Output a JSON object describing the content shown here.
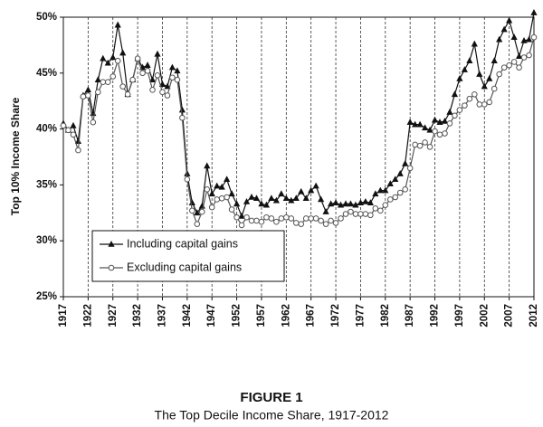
{
  "chart_data": {
    "type": "line",
    "title": "FIGURE 1",
    "subtitle": "The Top Decile Income Share, 1917-2012",
    "y_label": "Top 10% Income Share",
    "x": [
      1917,
      1918,
      1919,
      1920,
      1921,
      1922,
      1923,
      1924,
      1925,
      1926,
      1927,
      1928,
      1929,
      1930,
      1931,
      1932,
      1933,
      1934,
      1935,
      1936,
      1937,
      1938,
      1939,
      1940,
      1941,
      1942,
      1943,
      1944,
      1945,
      1946,
      1947,
      1948,
      1949,
      1950,
      1951,
      1952,
      1953,
      1954,
      1955,
      1956,
      1957,
      1958,
      1959,
      1960,
      1961,
      1962,
      1963,
      1964,
      1965,
      1966,
      1967,
      1968,
      1969,
      1970,
      1971,
      1972,
      1973,
      1974,
      1975,
      1976,
      1977,
      1978,
      1979,
      1980,
      1981,
      1982,
      1983,
      1984,
      1985,
      1986,
      1987,
      1988,
      1989,
      1990,
      1991,
      1992,
      1993,
      1994,
      1995,
      1996,
      1997,
      1998,
      1999,
      2000,
      2001,
      2002,
      2003,
      2004,
      2005,
      2006,
      2007,
      2008,
      2009,
      2010,
      2011,
      2012
    ],
    "series": [
      {
        "name": "Including capital gains",
        "color": "#111111",
        "marker": "triangle",
        "values": [
          40.5,
          39.9,
          40.3,
          38.9,
          43.0,
          43.5,
          41.4,
          44.4,
          46.3,
          45.9,
          46.4,
          49.3,
          46.8,
          43.1,
          44.4,
          46.3,
          45.5,
          45.7,
          44.4,
          46.7,
          44.0,
          43.8,
          45.5,
          45.2,
          41.7,
          36.0,
          33.4,
          32.5,
          33.1,
          36.7,
          34.2,
          34.9,
          34.8,
          35.5,
          34.2,
          33.3,
          32.2,
          33.5,
          33.9,
          33.8,
          33.3,
          33.2,
          33.8,
          33.6,
          34.2,
          33.8,
          33.6,
          33.8,
          34.4,
          33.8,
          34.5,
          34.9,
          33.7,
          32.6,
          33.3,
          33.4,
          33.2,
          33.3,
          33.3,
          33.2,
          33.4,
          33.5,
          33.4,
          34.2,
          34.5,
          34.5,
          35.1,
          35.5,
          36.0,
          36.9,
          40.6,
          40.4,
          40.4,
          40.1,
          39.9,
          40.8,
          40.6,
          40.7,
          41.5,
          43.1,
          44.5,
          45.3,
          46.1,
          47.6,
          44.9,
          43.8,
          44.5,
          46.1,
          48.0,
          48.9,
          49.7,
          48.2,
          46.5,
          47.9,
          48.0,
          50.4
        ]
      },
      {
        "name": "Excluding capital gains",
        "color": "#555555",
        "marker": "circle",
        "values": [
          40.3,
          39.9,
          39.5,
          38.1,
          42.9,
          43.0,
          40.6,
          43.3,
          44.2,
          44.2,
          44.7,
          46.1,
          43.8,
          43.1,
          44.4,
          46.3,
          45.0,
          45.2,
          43.5,
          44.8,
          43.3,
          43.0,
          44.6,
          44.4,
          41.0,
          35.5,
          32.7,
          31.5,
          32.6,
          34.6,
          33.0,
          33.7,
          33.8,
          33.9,
          32.8,
          32.1,
          31.4,
          32.1,
          31.8,
          31.8,
          31.7,
          32.1,
          32.0,
          31.7,
          32.0,
          32.1,
          32.0,
          31.6,
          31.5,
          32.0,
          32.0,
          32.0,
          31.8,
          31.5,
          31.8,
          31.6,
          32.0,
          32.4,
          32.6,
          32.4,
          32.4,
          32.4,
          32.3,
          32.9,
          32.7,
          33.2,
          33.7,
          33.9,
          34.3,
          34.6,
          36.5,
          38.6,
          38.5,
          38.8,
          38.4,
          39.8,
          39.5,
          39.6,
          40.5,
          41.2,
          41.7,
          42.1,
          42.7,
          43.1,
          42.2,
          42.2,
          42.4,
          43.6,
          44.9,
          45.5,
          45.7,
          46.0,
          45.5,
          46.4,
          46.6,
          48.2
        ]
      }
    ],
    "xlim": [
      1917,
      2012
    ],
    "xticks": [
      1917,
      1922,
      1927,
      1932,
      1937,
      1942,
      1947,
      1952,
      1957,
      1962,
      1967,
      1972,
      1977,
      1982,
      1987,
      1992,
      1997,
      2002,
      2007,
      2012
    ],
    "ylim": [
      25,
      50
    ],
    "yticks": [
      {
        "value": 25,
        "label": "25%"
      },
      {
        "value": 30,
        "label": "30%"
      },
      {
        "value": 35,
        "label": "35%"
      },
      {
        "value": 40,
        "label": "40%"
      },
      {
        "value": 45,
        "label": "45%"
      },
      {
        "value": 50,
        "label": "50%"
      }
    ],
    "grid": "x",
    "legend": "lower left"
  }
}
